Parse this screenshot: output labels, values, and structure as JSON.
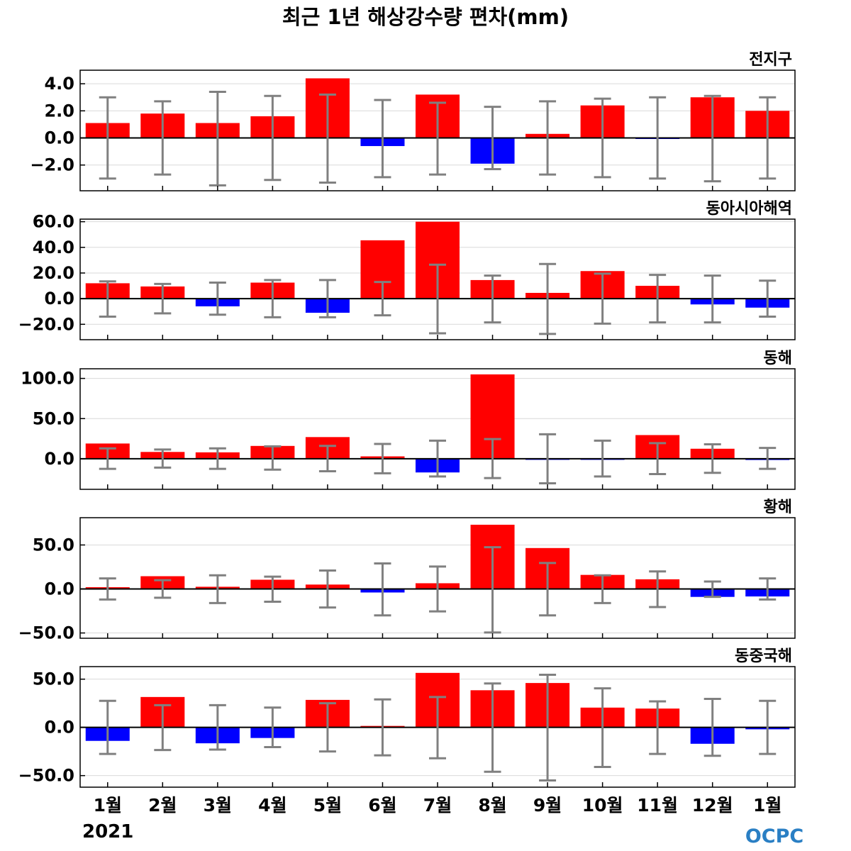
{
  "chart_data": {
    "type": "bar",
    "title": "최근 1년 해상강수량 편차(mm)",
    "categories": [
      "1월",
      "2월",
      "3월",
      "4월",
      "5월",
      "6월",
      "7월",
      "8월",
      "9월",
      "10월",
      "11월",
      "12월",
      "1월"
    ],
    "year_label": "2021",
    "logo_text": "OCPC",
    "colors": {
      "positive": "#ff0000",
      "negative": "#0000ff",
      "error_bar": "#808080"
    },
    "panels": [
      {
        "name": "전지구",
        "ylim": [
          -3.9,
          5.0
        ],
        "yticks": [
          4.0,
          2.0,
          0.0,
          -2.0
        ],
        "ytick_labels": [
          "4.0",
          "2.0",
          "0.0",
          "−2.0"
        ],
        "values": [
          1.1,
          1.8,
          1.1,
          1.6,
          4.4,
          -0.6,
          3.2,
          -1.9,
          0.3,
          2.4,
          -0.05,
          3.0,
          2.0
        ],
        "error_upper": [
          3.0,
          2.7,
          3.4,
          3.1,
          3.2,
          2.8,
          2.6,
          2.3,
          2.7,
          2.9,
          3.0,
          3.1,
          3.0
        ],
        "error_lower": [
          -3.0,
          -2.7,
          -3.5,
          -3.1,
          -3.3,
          -2.9,
          -2.7,
          -2.3,
          -2.7,
          -2.9,
          -3.0,
          -3.2,
          -3.0
        ]
      },
      {
        "name": "동아시아해역",
        "ylim": [
          -32,
          62
        ],
        "yticks": [
          60.0,
          40.0,
          20.0,
          0.0,
          -20.0
        ],
        "ytick_labels": [
          "60.0",
          "40.0",
          "20.0",
          "0.0",
          "−20.0"
        ],
        "values": [
          12,
          9.5,
          -6,
          12.5,
          -11,
          45.5,
          60,
          14.5,
          4.5,
          21.5,
          10,
          -4.5,
          -7
        ],
        "error_upper": [
          13.5,
          11.5,
          12.5,
          14.5,
          14.5,
          13,
          26.5,
          18,
          27,
          19.5,
          18.5,
          18,
          14
        ],
        "error_lower": [
          -14,
          -11.5,
          -12.5,
          -14.5,
          -14.5,
          -13,
          -27,
          -18.5,
          -27.5,
          -19.5,
          -18.5,
          -18.5,
          -14
        ]
      },
      {
        "name": "동해",
        "ylim": [
          -38,
          112
        ],
        "yticks": [
          100.0,
          50.0,
          0.0
        ],
        "ytick_labels": [
          "100.0",
          "50.0",
          "0.0"
        ],
        "values": [
          19,
          8.5,
          8,
          16,
          27,
          3,
          -17,
          105,
          -0.5,
          -0.5,
          29.5,
          12.5,
          -1.5
        ],
        "error_upper": [
          13,
          11.5,
          13,
          15.5,
          16,
          18.5,
          22.5,
          24.5,
          30.5,
          22.5,
          19.5,
          18,
          13.5
        ],
        "error_lower": [
          -12.5,
          -11,
          -12.5,
          -13.5,
          -15.5,
          -18,
          -22,
          -24,
          -30.5,
          -22,
          -19,
          -17.5,
          -12.5
        ]
      },
      {
        "name": "황해",
        "ylim": [
          -56,
          81
        ],
        "yticks": [
          50.0,
          0.0,
          -50.0
        ],
        "ytick_labels": [
          "50.0",
          "0.0",
          "−50.0"
        ],
        "values": [
          2,
          14.5,
          2.5,
          10.5,
          5,
          -4,
          6.5,
          73,
          46.5,
          16,
          11,
          -9,
          -8.5
        ],
        "error_upper": [
          12,
          10,
          15.5,
          14,
          21,
          29,
          25.5,
          47.5,
          29.5,
          15.5,
          20,
          8.5,
          12
        ],
        "error_lower": [
          -12,
          -10,
          -16,
          -14.5,
          -21,
          -30,
          -25.5,
          -49.5,
          -30,
          -16,
          -20.5,
          -9,
          -12
        ]
      },
      {
        "name": "동중국해",
        "ylim": [
          -62,
          63
        ],
        "yticks": [
          50.0,
          0.0,
          -50.0
        ],
        "ytick_labels": [
          "50.0",
          "0.0",
          "−50.0"
        ],
        "values": [
          -14,
          31.5,
          -16.5,
          -11,
          28.5,
          1.5,
          56.5,
          38.5,
          46,
          20.5,
          19.5,
          -17,
          -2
        ],
        "error_upper": [
          27.5,
          23,
          23,
          20.5,
          25,
          29,
          31.5,
          45.5,
          54.5,
          40.5,
          27,
          29.5,
          27.5
        ],
        "error_lower": [
          -27.5,
          -23.5,
          -23,
          -20.5,
          -25,
          -29,
          -32,
          -46,
          -55,
          -41,
          -27.5,
          -29.5,
          -27.5
        ]
      }
    ]
  }
}
